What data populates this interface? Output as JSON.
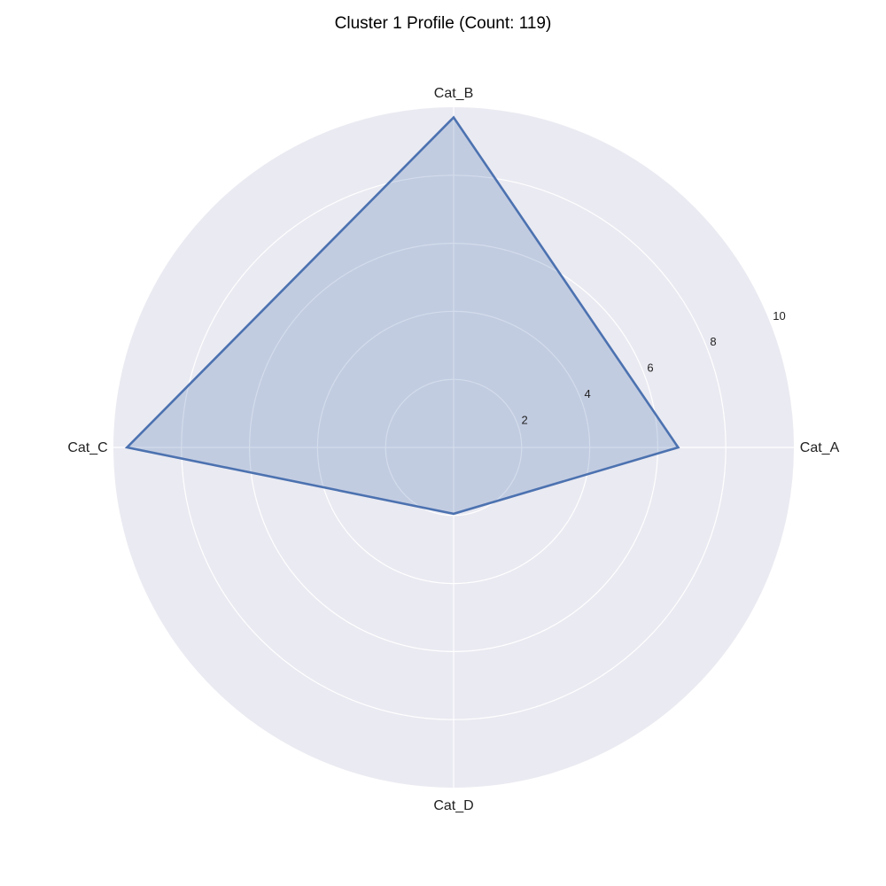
{
  "chart_data": {
    "type": "radar",
    "title": "Cluster 1 Profile (Count: 119)",
    "categories": [
      "Cat_A",
      "Cat_B",
      "Cat_C",
      "Cat_D"
    ],
    "series": [
      {
        "values": [
          6.6,
          9.7,
          9.6,
          1.95
        ]
      }
    ],
    "rlim": [
      0,
      10
    ],
    "rticks": [
      2,
      4,
      6,
      8,
      10
    ],
    "rtick_labels": [
      "2",
      "4",
      "6",
      "8",
      "10"
    ],
    "grid": true,
    "colors": {
      "background": "#eaeaf2",
      "grid": "#ffffff",
      "line": "#4c72b0",
      "fill": "#4c72b0"
    }
  }
}
